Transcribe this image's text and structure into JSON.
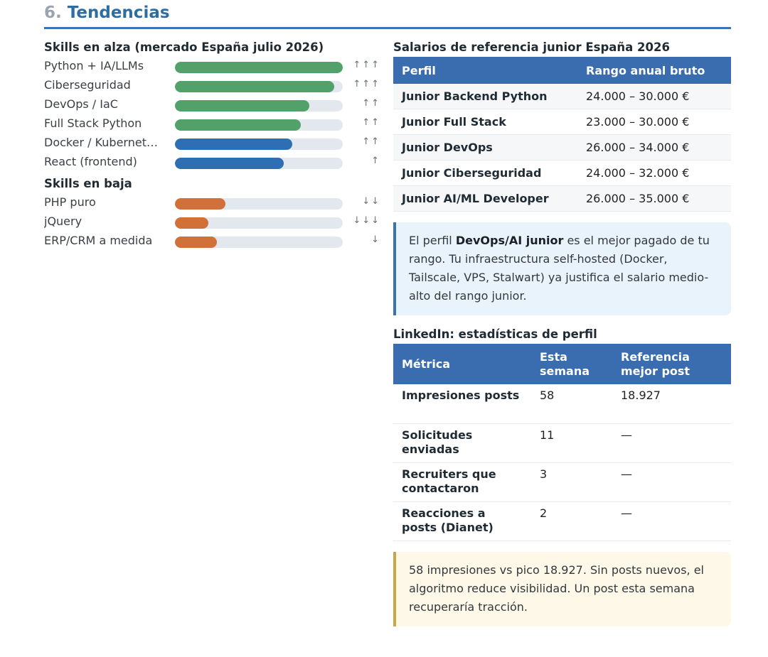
{
  "section": {
    "number": "6.",
    "title": "Tendencias"
  },
  "skills_up": {
    "title": "Skills en alza (mercado España julio 2026)",
    "items": [
      {
        "name": "Python + IA/LLMs",
        "level": 1.0,
        "color": "#52a06a",
        "trend": "↑↑↑"
      },
      {
        "name": "Ciberseguridad",
        "level": 0.95,
        "color": "#52a06a",
        "trend": "↑↑↑"
      },
      {
        "name": "DevOps / IaC",
        "level": 0.8,
        "color": "#52a06a",
        "trend": "↑↑"
      },
      {
        "name": "Full Stack Python",
        "level": 0.75,
        "color": "#52a06a",
        "trend": "↑↑"
      },
      {
        "name": "Docker / Kubernet…",
        "level": 0.7,
        "color": "#2e6fb4",
        "trend": "↑↑"
      },
      {
        "name": "React (frontend)",
        "level": 0.65,
        "color": "#2e6fb4",
        "trend": "↑"
      }
    ]
  },
  "skills_down": {
    "title": "Skills en baja",
    "items": [
      {
        "name": "PHP puro",
        "level": 0.3,
        "color": "#d2703a",
        "trend": "↓↓"
      },
      {
        "name": "jQuery",
        "level": 0.2,
        "color": "#d2703a",
        "trend": "↓↓↓"
      },
      {
        "name": "ERP/CRM a medida",
        "level": 0.25,
        "color": "#d2703a",
        "trend": "↓"
      }
    ]
  },
  "salaries": {
    "title": "Salarios de referencia junior España 2026",
    "headers": [
      "Perfil",
      "Rango anual bruto"
    ],
    "rows": [
      [
        "Junior Backend Python",
        "24.000 – 30.000 €"
      ],
      [
        "Junior Full Stack",
        "23.000 – 30.000 €"
      ],
      [
        "Junior DevOps",
        "26.000 – 34.000 €"
      ],
      [
        "Junior Ciberseguridad",
        "24.000 – 32.000 €"
      ],
      [
        "Junior AI/ML Developer",
        "26.000 – 35.000 €"
      ]
    ]
  },
  "info": {
    "pre": "El perfil ",
    "strong": "DevOps/AI junior",
    "post": " es el mejor pagado de tu rango. Tu infraestructura self-hosted (Docker, Tailscale, VPS, Stalwart) ya justifica el salario medio-alto del rango junior."
  },
  "linkedin": {
    "title": "LinkedIn: estadísticas de perfil",
    "headers": [
      "Métrica",
      "Esta semana",
      "Referencia mejor post"
    ],
    "rows": [
      [
        "Impresiones posts",
        "58",
        "18.927"
      ],
      [
        "Solicitudes enviadas",
        "11",
        "—"
      ],
      [
        "Recruiters que contactaron",
        "3",
        "—"
      ],
      [
        "Reacciones a posts (Dianet)",
        "2",
        "—"
      ]
    ]
  },
  "warning": "58 impresiones vs pico 18.927. Sin posts nuevos, el algoritmo reduce visibilidad. Un post esta semana recuperaría tracción."
}
